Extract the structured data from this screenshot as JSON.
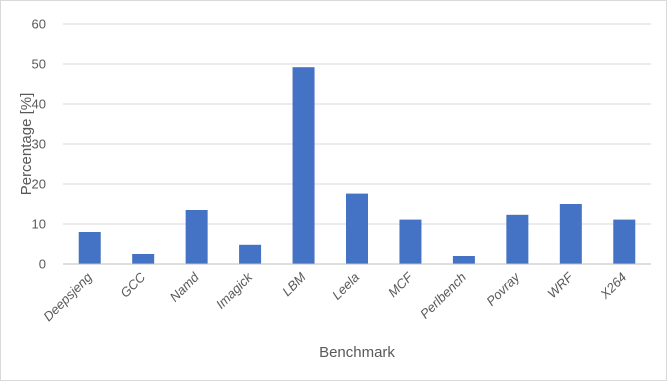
{
  "chart_data": {
    "type": "bar",
    "categories": [
      "Deepsjeng",
      "GCC",
      "Namd",
      "Imagick",
      "LBM",
      "Leela",
      "MCF",
      "Perlbench",
      "Povray",
      "WRF",
      "X264"
    ],
    "values": [
      8.0,
      2.5,
      13.5,
      4.8,
      49.2,
      17.6,
      11.1,
      2.0,
      12.3,
      15.0,
      11.1
    ],
    "xlabel": "Benchmark",
    "ylabel": "Percentage [%]",
    "ylim": [
      0,
      60
    ],
    "yticks": [
      "0",
      "10",
      "20",
      "30",
      "40",
      "50",
      "60"
    ],
    "grid": true,
    "bar_color": "#4472C4",
    "grid_color": "#d9d9d9",
    "axis_color": "#bfbfbf"
  }
}
